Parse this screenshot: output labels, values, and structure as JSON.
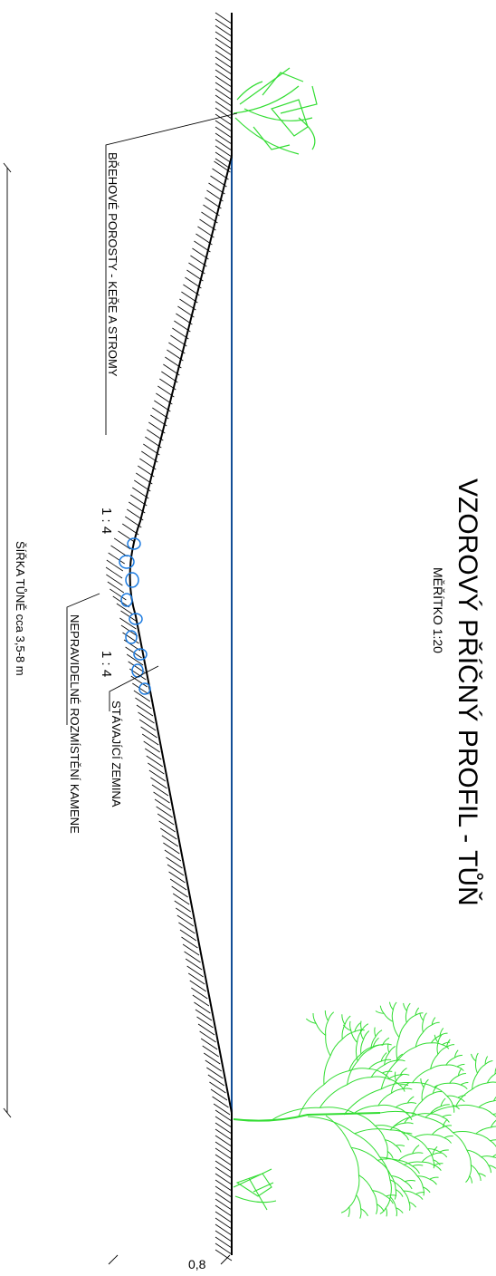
{
  "title": "VZOROVÝ PŘÍČNÝ PROFIL - TŮŇ",
  "scale": "MĚŘÍTKO 1:20",
  "labels": {
    "vegetation": "BŘEHOVÉ POROSTY - KEŘE A STROMY",
    "stones": "NEPRAVIDELNÉ ROZMÍSTĚNÍ KAMENE",
    "soil": "STÁVAJÍCÍ ZEMINA",
    "slope_upper": "1 : 4",
    "slope_lower": "1 : 4",
    "width": "ŠÍŘKA TŮNĚ cca 3,5-8 m",
    "depth": "0,8"
  },
  "colors": {
    "ground": "#000000",
    "water": "#1a6fd6",
    "vegetation": "#33dd33",
    "stones": "#1a7ae0"
  }
}
